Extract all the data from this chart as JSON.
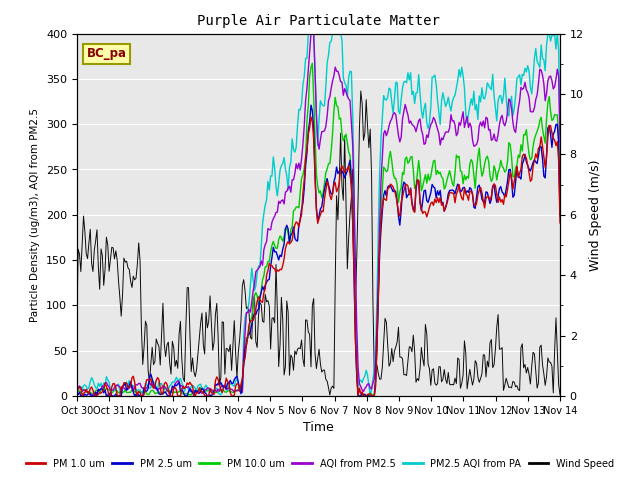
{
  "title": "Purple Air Particulate Matter",
  "ylabel_left": "Particle Density (ug/m3), AQI from PM2.5",
  "ylabel_right": "Wind Speed (m/s)",
  "xlabel": "Time",
  "ylim_left": [
    0,
    400
  ],
  "ylim_right": [
    0,
    12
  ],
  "annotation_text": "BC_pa",
  "annotation_bg": "#ffffaa",
  "annotation_border": "#999900",
  "annotation_text_color": "#880000",
  "plot_bg": "#e8e8e8",
  "xtick_labels": [
    "Oct 30",
    "Oct 31",
    "Nov 1",
    "Nov 2",
    "Nov 3",
    "Nov 4",
    "Nov 5",
    "Nov 6",
    "Nov 7",
    "Nov 8",
    "Nov 9",
    "Nov 10",
    "Nov 11",
    "Nov 12",
    "Nov 13",
    "Nov 14"
  ],
  "colors": {
    "pm1": "#cc0000",
    "pm25": "#0000cc",
    "pm10": "#00cc00",
    "aqi_pm25": "#9900cc",
    "aqi_pa": "#00cccc",
    "wind": "#000000"
  },
  "legend_labels": [
    "PM 1.0 um",
    "PM 2.5 um",
    "PM 10.0 um",
    "AQI from PM2.5",
    "PM2.5 AQI from PA",
    "Wind Speed"
  ]
}
